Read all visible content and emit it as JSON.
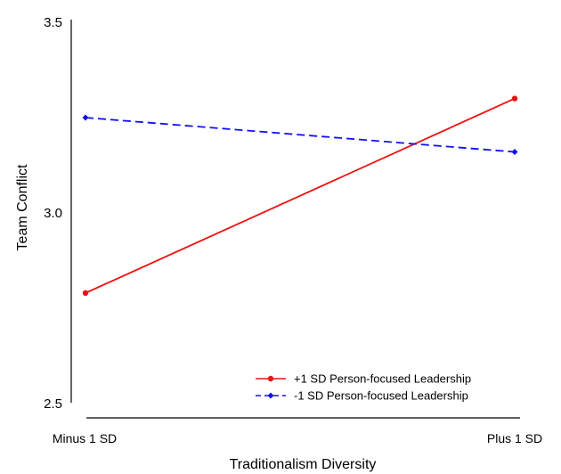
{
  "chart_data": {
    "type": "line",
    "title": "",
    "xlabel": "Traditionalism Diversity",
    "ylabel": "Team Conflict",
    "categories": [
      "Minus 1 SD",
      "Plus 1 SD"
    ],
    "ylim": [
      2.5,
      3.5
    ],
    "yticks": [
      "2.5",
      "3.0",
      "3.5"
    ],
    "grid": false,
    "legend_position": "bottom-right",
    "series": [
      {
        "name": "+1 SD Person-focused Leadership",
        "values": [
          2.79,
          3.3
        ],
        "color": "#ee1111",
        "dash": "solid",
        "marker": "circle"
      },
      {
        "name": "-1 SD Person-focused Leadership",
        "values": [
          3.25,
          3.16
        ],
        "color": "#1111ee",
        "dash": "dashed",
        "marker": "diamond"
      }
    ]
  }
}
